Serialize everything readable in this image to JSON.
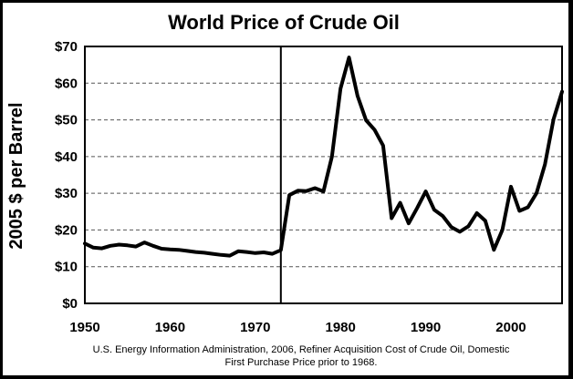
{
  "chart_data": {
    "type": "line",
    "title": "World Price of Crude Oil",
    "xlabel": "",
    "ylabel": "2005 $ per Barrel",
    "xlim": [
      1950,
      2006
    ],
    "ylim": [
      0,
      70
    ],
    "grid": "horizontal dashed",
    "x_ticks": [
      1950,
      1960,
      1970,
      1980,
      1990,
      2000
    ],
    "y_ticks": [
      {
        "value": 0,
        "label": "$0"
      },
      {
        "value": 10,
        "label": "$10"
      },
      {
        "value": 20,
        "label": "$20"
      },
      {
        "value": 30,
        "label": "$30"
      },
      {
        "value": 40,
        "label": "$40"
      },
      {
        "value": 50,
        "label": "$50"
      },
      {
        "value": 60,
        "label": "$60"
      },
      {
        "value": 70,
        "label": "$70"
      }
    ],
    "reference_line_x": 1973,
    "source_lines": [
      "U.S. Energy Information Administration, 2006, Refiner Acquisition Cost of Crude Oil, Domestic",
      "First Purchase Price prior to 1968."
    ],
    "series": [
      {
        "name": "World Price of Crude Oil",
        "x": [
          1950,
          1951,
          1952,
          1953,
          1954,
          1955,
          1956,
          1957,
          1958,
          1959,
          1960,
          1961,
          1962,
          1963,
          1964,
          1965,
          1966,
          1967,
          1968,
          1969,
          1970,
          1971,
          1972,
          1973,
          1974,
          1975,
          1976,
          1977,
          1978,
          1979,
          1980,
          1981,
          1982,
          1983,
          1984,
          1985,
          1986,
          1987,
          1988,
          1989,
          1990,
          1991,
          1992,
          1993,
          1994,
          1995,
          1996,
          1997,
          1998,
          1999,
          2000,
          2001,
          2002,
          2003,
          2004,
          2005,
          2006
        ],
        "values": [
          16.3,
          15.2,
          15.0,
          15.7,
          16.0,
          15.8,
          15.5,
          16.6,
          15.7,
          14.9,
          14.7,
          14.6,
          14.3,
          14.0,
          13.8,
          13.5,
          13.2,
          13.0,
          14.2,
          14.0,
          13.7,
          13.9,
          13.5,
          14.5,
          29.5,
          30.7,
          30.6,
          31.4,
          30.5,
          40.0,
          58.5,
          67.0,
          56.5,
          49.9,
          47.3,
          43.0,
          23.2,
          27.4,
          21.8,
          26.0,
          30.5,
          25.5,
          23.8,
          20.8,
          19.5,
          21.0,
          24.6,
          22.5,
          14.6,
          20.0,
          31.8,
          25.2,
          26.2,
          30.0,
          37.9,
          50.2,
          57.7
        ]
      }
    ]
  }
}
